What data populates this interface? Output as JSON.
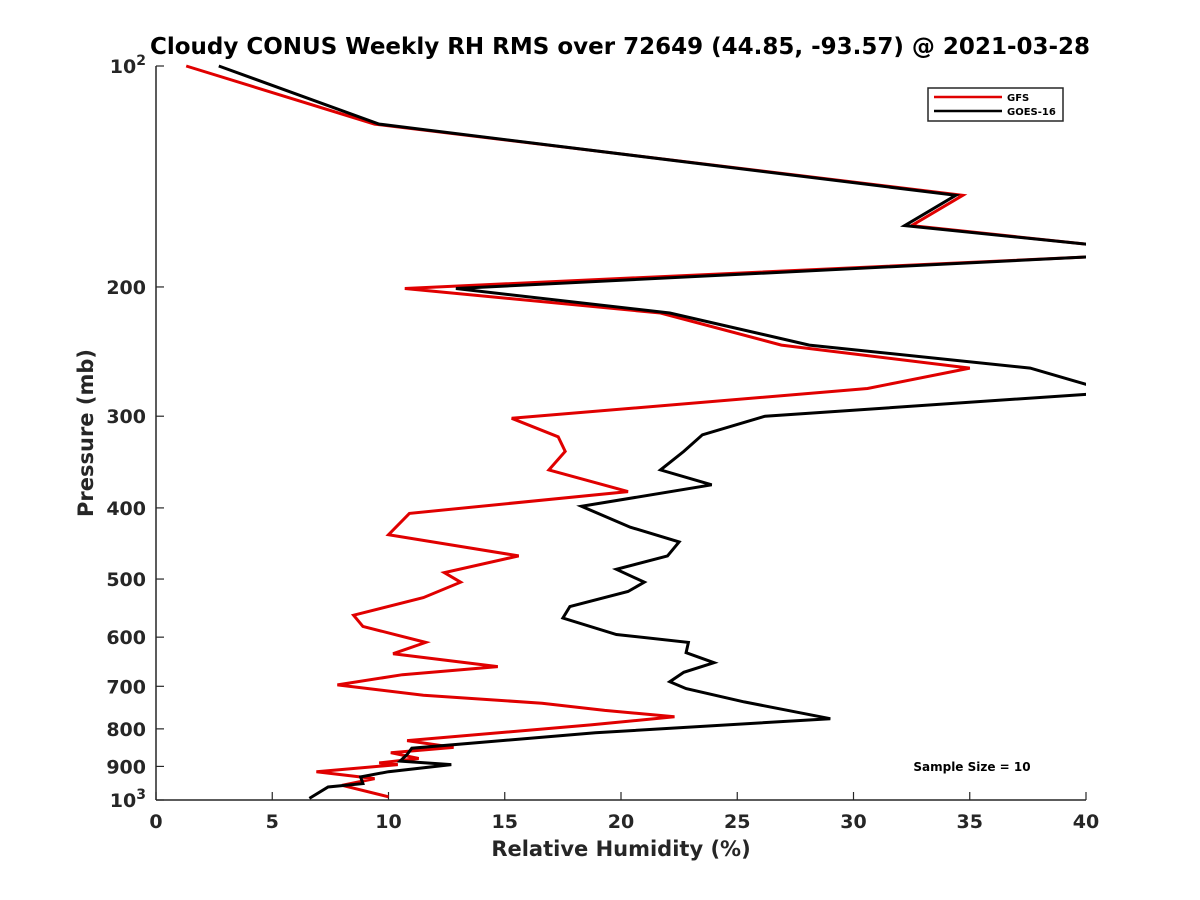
{
  "chart_data": {
    "type": "line",
    "title": "Cloudy CONUS Weekly RH RMS over 72649 (44.85, -93.57) @ 2021-03-28",
    "xlabel": "Relative Humidity (%)",
    "ylabel": "Pressure (mb)",
    "xlim": [
      0,
      40
    ],
    "ylim": [
      100,
      1000
    ],
    "yscale": "log",
    "y_reversed": true,
    "x_ticks": [
      "0",
      "5",
      "10",
      "15",
      "20",
      "25",
      "30",
      "35",
      "40"
    ],
    "y_ticks": [
      {
        "value": 100,
        "label": "10",
        "sup": "2"
      },
      {
        "value": 200,
        "label": "200",
        "sup": ""
      },
      {
        "value": 300,
        "label": "300",
        "sup": ""
      },
      {
        "value": 400,
        "label": "400",
        "sup": ""
      },
      {
        "value": 500,
        "label": "500",
        "sup": ""
      },
      {
        "value": 600,
        "label": "600",
        "sup": ""
      },
      {
        "value": 700,
        "label": "700",
        "sup": ""
      },
      {
        "value": 800,
        "label": "800",
        "sup": ""
      },
      {
        "value": 900,
        "label": "900",
        "sup": ""
      },
      {
        "value": 1000,
        "label": "10",
        "sup": "3"
      }
    ],
    "grid": false,
    "legend": {
      "placement": "top-right"
    },
    "annotation": "Sample Size = 10",
    "series": [
      {
        "name": "GFS",
        "color": "#e00000",
        "points": [
          [
            1.3,
            100
          ],
          [
            9.4,
            120
          ],
          [
            34.7,
            150
          ],
          [
            32.5,
            165
          ],
          [
            40.1,
            175
          ],
          [
            40.1,
            182
          ],
          [
            10.7,
            201
          ],
          [
            21.7,
            217
          ],
          [
            26.9,
            240
          ],
          [
            35.0,
            258
          ],
          [
            30.6,
            275
          ],
          [
            15.3,
            302
          ],
          [
            17.3,
            320
          ],
          [
            17.6,
            335
          ],
          [
            16.9,
            355
          ],
          [
            20.3,
            380
          ],
          [
            10.9,
            407
          ],
          [
            10.0,
            435
          ],
          [
            15.6,
            465
          ],
          [
            12.4,
            490
          ],
          [
            13.1,
            505
          ],
          [
            11.5,
            530
          ],
          [
            8.5,
            560
          ],
          [
            8.9,
            580
          ],
          [
            11.6,
            610
          ],
          [
            10.2,
            632
          ],
          [
            14.7,
            658
          ],
          [
            10.6,
            675
          ],
          [
            7.8,
            697
          ],
          [
            11.5,
            720
          ],
          [
            16.6,
            738
          ],
          [
            19.3,
            755
          ],
          [
            22.3,
            770
          ],
          [
            18.7,
            790
          ],
          [
            10.8,
            830
          ],
          [
            12.8,
            848
          ],
          [
            10.1,
            862
          ],
          [
            11.3,
            878
          ],
          [
            9.6,
            890
          ],
          [
            10.4,
            895
          ],
          [
            6.9,
            915
          ],
          [
            9.4,
            935
          ],
          [
            8.0,
            955
          ],
          [
            10.0,
            990
          ]
        ]
      },
      {
        "name": "GOES-16",
        "color": "#000000",
        "points": [
          [
            2.7,
            100
          ],
          [
            9.6,
            120
          ],
          [
            34.4,
            150
          ],
          [
            32.2,
            165
          ],
          [
            40.1,
            175
          ],
          [
            40.1,
            182
          ],
          [
            12.9,
            201
          ],
          [
            22.1,
            217
          ],
          [
            28.1,
            240
          ],
          [
            37.6,
            258
          ],
          [
            40.1,
            272
          ],
          [
            40.1,
            280
          ],
          [
            26.2,
            300
          ],
          [
            23.5,
            318
          ],
          [
            22.7,
            335
          ],
          [
            21.7,
            355
          ],
          [
            23.9,
            372
          ],
          [
            18.3,
            398
          ],
          [
            20.4,
            425
          ],
          [
            22.5,
            445
          ],
          [
            22.0,
            465
          ],
          [
            19.8,
            485
          ],
          [
            21.0,
            505
          ],
          [
            20.3,
            520
          ],
          [
            17.8,
            545
          ],
          [
            17.5,
            565
          ],
          [
            19.8,
            595
          ],
          [
            22.9,
            610
          ],
          [
            22.8,
            630
          ],
          [
            24.0,
            650
          ],
          [
            22.7,
            670
          ],
          [
            22.1,
            690
          ],
          [
            22.8,
            705
          ],
          [
            25.3,
            735
          ],
          [
            29.0,
            775
          ],
          [
            18.9,
            810
          ],
          [
            11.0,
            850
          ],
          [
            10.8,
            867
          ],
          [
            10.5,
            885
          ],
          [
            12.7,
            895
          ],
          [
            10.0,
            915
          ],
          [
            8.8,
            930
          ],
          [
            8.9,
            950
          ],
          [
            7.4,
            960
          ],
          [
            6.6,
            995
          ]
        ]
      }
    ]
  }
}
